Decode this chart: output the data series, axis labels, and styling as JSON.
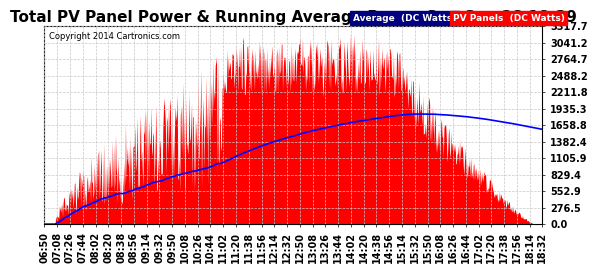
{
  "title": "Total PV Panel Power & Running Average Power Sun Sep 28 18:39",
  "copyright": "Copyright 2014 Cartronics.com",
  "legend_avg": "Average  (DC Watts)",
  "legend_pv": "PV Panels  (DC Watts)",
  "ylabel_max": 3317.7,
  "ylabel_min": 0.0,
  "ytick_values": [
    0.0,
    276.5,
    552.9,
    829.4,
    1105.9,
    1382.4,
    1658.8,
    1935.3,
    2211.8,
    2488.2,
    2764.7,
    3041.2,
    3317.7
  ],
  "bg_color": "#ffffff",
  "plot_bg_color": "#ffffff",
  "grid_color": "#c8c8c8",
  "pv_fill_color": "#ff0000",
  "avg_line_color": "#0000ff",
  "title_fontsize": 11,
  "tick_fontsize": 7,
  "time_labels": [
    "06:50",
    "07:08",
    "07:26",
    "07:44",
    "08:02",
    "08:20",
    "08:38",
    "08:56",
    "09:14",
    "09:32",
    "09:50",
    "10:08",
    "10:26",
    "10:44",
    "11:02",
    "11:20",
    "11:38",
    "11:56",
    "12:14",
    "12:32",
    "12:50",
    "13:08",
    "13:26",
    "13:44",
    "14:02",
    "14:20",
    "14:38",
    "14:56",
    "15:14",
    "15:32",
    "15:50",
    "16:08",
    "16:26",
    "16:44",
    "17:02",
    "17:20",
    "17:38",
    "17:56",
    "18:14",
    "18:32"
  ],
  "legend_avg_bg": "#000080",
  "legend_pv_bg": "#ff0000",
  "legend_text_color": "#ffffff"
}
